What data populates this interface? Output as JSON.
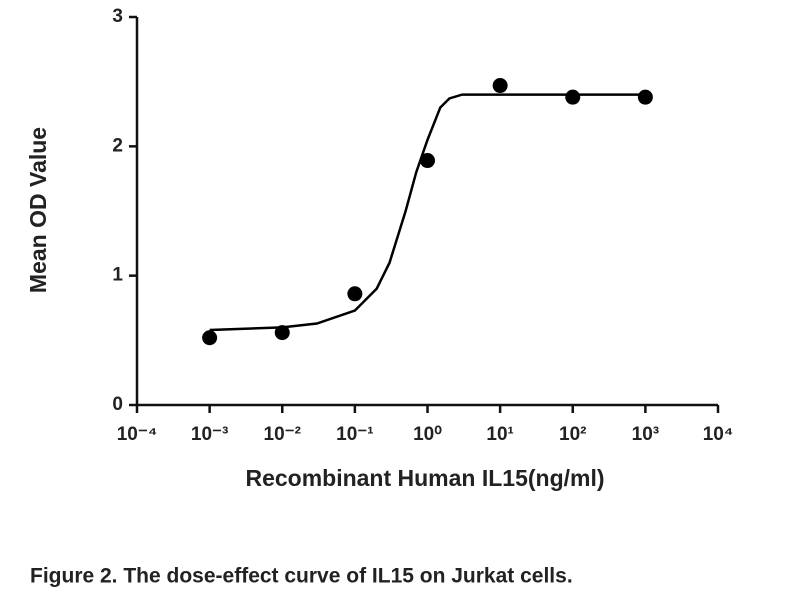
{
  "chart_data": {
    "type": "scatter",
    "x_label": "Recombinant Human IL15(ng/ml)",
    "y_label": "Mean OD Value",
    "caption": "Figure 2. The dose-effect curve of IL15 on Jurkat cells.",
    "x": [
      0.001,
      0.01,
      0.1,
      1,
      10,
      100,
      1000
    ],
    "values": [
      0.52,
      0.56,
      0.86,
      1.89,
      2.47,
      2.38,
      2.38
    ],
    "color": "#000000",
    "fit": {
      "x": [
        0.001,
        0.01,
        0.03,
        0.1,
        0.2,
        0.3,
        0.5,
        0.7,
        1,
        1.5,
        2,
        3,
        10,
        100,
        1000
      ],
      "values": [
        0.58,
        0.6,
        0.63,
        0.73,
        0.9,
        1.1,
        1.5,
        1.8,
        2.05,
        2.3,
        2.37,
        2.4,
        2.4,
        2.4,
        2.4
      ]
    },
    "xscale": "log",
    "xlim": [
      0.0001,
      10000
    ],
    "xticks": [
      {
        "value": 0.0001,
        "label": "10⁻⁴"
      },
      {
        "value": 0.001,
        "label": "10⁻³"
      },
      {
        "value": 0.01,
        "label": "10⁻²"
      },
      {
        "value": 0.1,
        "label": "10⁻¹"
      },
      {
        "value": 1,
        "label": "10⁰"
      },
      {
        "value": 10,
        "label": "10¹"
      },
      {
        "value": 100,
        "label": "10²"
      },
      {
        "value": 1000,
        "label": "10³"
      },
      {
        "value": 10000,
        "label": "10⁴"
      }
    ],
    "ylim": [
      0,
      3
    ],
    "yticks": [
      0,
      1,
      2,
      3
    ]
  }
}
